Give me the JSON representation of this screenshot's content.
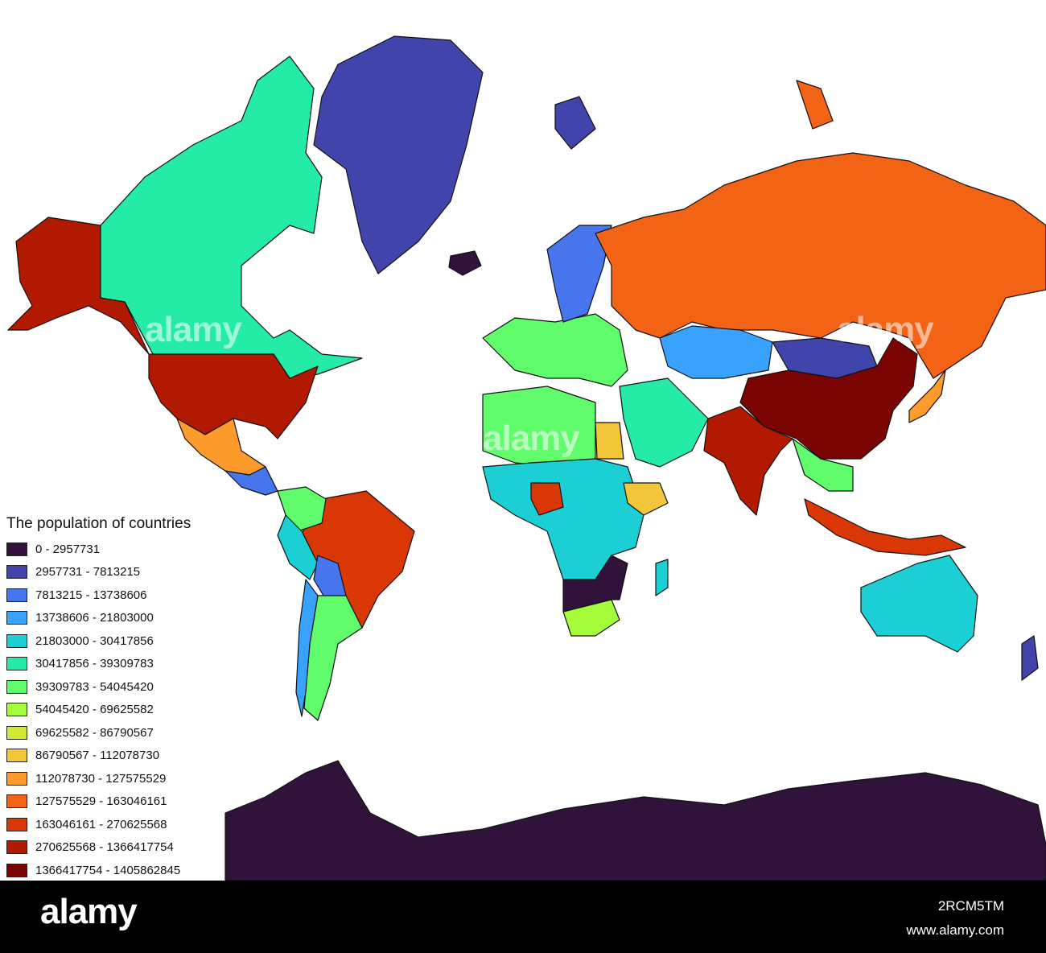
{
  "legend": {
    "title": "The population of countries",
    "classes": [
      {
        "label": "0 - 2957731",
        "color": "#30123b"
      },
      {
        "label": "2957731 - 7813215",
        "color": "#4145ab"
      },
      {
        "label": "7813215 - 13738606",
        "color": "#4675ed"
      },
      {
        "label": "13738606 - 21803000",
        "color": "#39a2fc"
      },
      {
        "label": "21803000 - 30417856",
        "color": "#1bcfd4"
      },
      {
        "label": "30417856 - 39309783",
        "color": "#24eca6"
      },
      {
        "label": "39309783 - 54045420",
        "color": "#61fc6c"
      },
      {
        "label": "54045420 - 69625582",
        "color": "#a4fc3b"
      },
      {
        "label": "69625582 - 86790567",
        "color": "#d1e834"
      },
      {
        "label": "86790567 - 112078730",
        "color": "#f3c63a"
      },
      {
        "label": "112078730 - 127575529",
        "color": "#fe9b2d"
      },
      {
        "label": "127575529 - 163046161",
        "color": "#f36315"
      },
      {
        "label": "163046161 - 270625568",
        "color": "#d93806"
      },
      {
        "label": "270625568 - 1366417754",
        "color": "#b11901"
      },
      {
        "label": "1366417754 - 1405862845",
        "color": "#7a0402"
      }
    ]
  },
  "watermark": {
    "text": "alamy",
    "bottom_logo": "alamy",
    "image_id": "2RCM5TM",
    "url": "www.alamy.com"
  },
  "map": {
    "background_color": "#ffffff",
    "outline_color": "#111111",
    "countries": [
      {
        "name": "Alaska",
        "class": 13
      },
      {
        "name": "Canada",
        "class": 5
      },
      {
        "name": "United States",
        "class": 13
      },
      {
        "name": "Mexico",
        "class": 10
      },
      {
        "name": "Greenland",
        "class": 1
      },
      {
        "name": "Iceland",
        "class": 0
      },
      {
        "name": "Brazil",
        "class": 12
      },
      {
        "name": "Colombia",
        "class": 6
      },
      {
        "name": "Peru",
        "class": 4
      },
      {
        "name": "Bolivia",
        "class": 2
      },
      {
        "name": "Argentina",
        "class": 6
      },
      {
        "name": "Chile",
        "class": 3
      },
      {
        "name": "Russia",
        "class": 11
      },
      {
        "name": "China",
        "class": 14
      },
      {
        "name": "India",
        "class": 13
      },
      {
        "name": "Mongolia",
        "class": 1
      },
      {
        "name": "Kazakhstan",
        "class": 3
      },
      {
        "name": "Australia",
        "class": 4
      },
      {
        "name": "Indonesia",
        "class": 12
      },
      {
        "name": "Japan",
        "class": 10
      },
      {
        "name": "Nigeria",
        "class": 12
      },
      {
        "name": "Egypt",
        "class": 9
      },
      {
        "name": "Ethiopia",
        "class": 9
      },
      {
        "name": "South Africa",
        "class": 7
      },
      {
        "name": "Antarctica",
        "class": 0
      }
    ]
  }
}
